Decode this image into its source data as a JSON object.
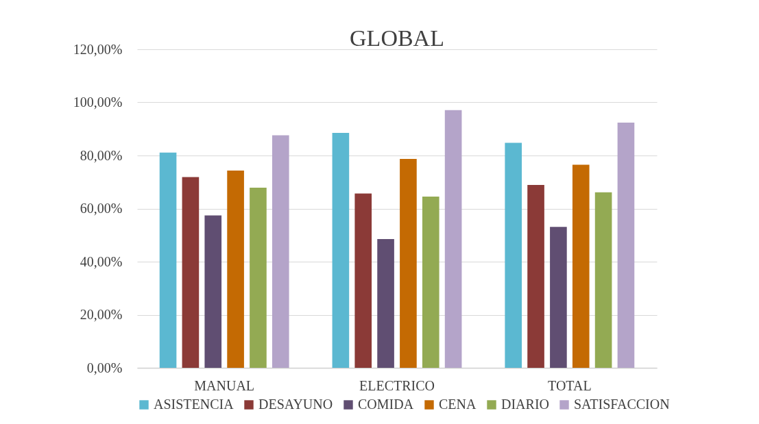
{
  "chart_data": {
    "type": "bar",
    "title": "GLOBAL",
    "categories": [
      "MANUAL",
      "ELECTRICO",
      "TOTAL"
    ],
    "series": [
      {
        "name": "ASISTENCIA",
        "color": "#5bb8d1",
        "values": [
          81.1,
          88.5,
          84.8
        ]
      },
      {
        "name": "DESAYUNO",
        "color": "#8b3a37",
        "values": [
          71.9,
          65.7,
          68.9
        ]
      },
      {
        "name": "COMIDA",
        "color": "#604e72",
        "values": [
          57.4,
          48.5,
          53.1
        ]
      },
      {
        "name": "CENA",
        "color": "#c46a03",
        "values": [
          74.3,
          78.7,
          76.5
        ]
      },
      {
        "name": "DIARIO",
        "color": "#93aa53",
        "values": [
          67.9,
          64.5,
          66.1
        ]
      },
      {
        "name": "SATISFACCION",
        "color": "#b4a4c9",
        "values": [
          87.6,
          97.1,
          92.4
        ]
      }
    ],
    "ylim": [
      0,
      120
    ],
    "yticks": [
      {
        "value": 0,
        "label": "0,00%"
      },
      {
        "value": 20,
        "label": "20,00%"
      },
      {
        "value": 40,
        "label": "40,00%"
      },
      {
        "value": 60,
        "label": "60,00%"
      },
      {
        "value": 80,
        "label": "80,00%"
      },
      {
        "value": 100,
        "label": "100,00%"
      },
      {
        "value": 120,
        "label": "120,00%"
      }
    ],
    "grid": "y",
    "legend": "bottom"
  }
}
